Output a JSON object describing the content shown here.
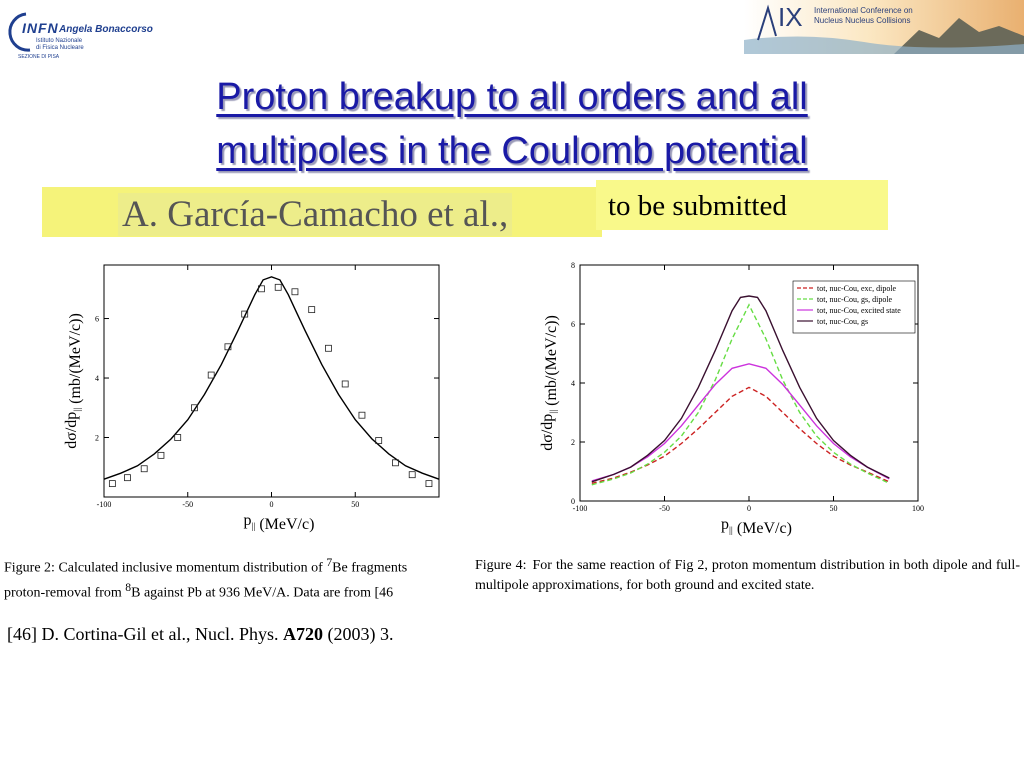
{
  "header": {
    "left_logo": {
      "wordmark": "INFN",
      "author": "Angela Bonaccorso",
      "line1": "Istituto Nazionale",
      "line2": "di Fisica Nucleare",
      "line3": "SEZIONE DI PISA"
    },
    "right_logo": {
      "numeral": "IX",
      "line1": "International Conference on",
      "line2": "Nucleus Nucleus Collisions"
    }
  },
  "title": {
    "line1": "Proton breakup to all orders and all",
    "line2": "multipoles in the Coulomb potential"
  },
  "authors": "A. García-Camacho et al.,",
  "status": "to be submitted",
  "captions": {
    "fig2_line1_a": "Figure 2:  Calculated inclusive momentum distribution of ",
    "fig2_sup1": "7",
    "fig2_line1_b": "Be fragments",
    "fig2_line2_a": "proton-removal from ",
    "fig2_sup2": "8",
    "fig2_line2_b": "B against Pb at 936 MeV/A. Data are from [46",
    "fig4_label": "Figure 4:",
    "fig4_text": "For the same reaction of Fig 2, proton momentum distribution in both dipole and full-multipole approximations, for both ground and excited state."
  },
  "reference": {
    "prefix": "[46]  D. Cortina-Gil et al., Nucl. Phys. ",
    "volume": "A720",
    "suffix": " (2003) 3."
  },
  "colors": {
    "title": "#1a1aa6",
    "highlight": "#f5f37a",
    "series_red": "#cc2222",
    "series_green": "#66dd44",
    "series_magenta": "#cc33dd",
    "series_dark": "#3a1030"
  },
  "chart_data": [
    {
      "type": "line",
      "xlabel": "p|| (MeV/c)",
      "ylabel": "dσ/dp|| (mb/(MeV/c))",
      "xlim": [
        -100,
        100
      ],
      "ylim": [
        0,
        7.8
      ],
      "xticks": [
        -100,
        -50,
        0,
        50
      ],
      "yticks": [
        2,
        4,
        6
      ],
      "series": [
        {
          "kind": "line",
          "x": [
            -100,
            -90,
            -80,
            -70,
            -60,
            -50,
            -40,
            -30,
            -20,
            -15,
            -10,
            -5,
            0,
            5,
            10,
            15,
            20,
            30,
            40,
            50,
            60,
            70,
            80,
            90,
            100
          ],
          "y": [
            0.6,
            0.8,
            1.05,
            1.45,
            1.95,
            2.6,
            3.45,
            4.45,
            5.6,
            6.2,
            6.8,
            7.3,
            7.4,
            7.3,
            6.8,
            6.2,
            5.6,
            4.45,
            3.45,
            2.6,
            1.95,
            1.45,
            1.05,
            0.8,
            0.6
          ]
        },
        {
          "kind": "points",
          "x": [
            -95,
            -86,
            -76,
            -66,
            -56,
            -46,
            -36,
            -26,
            -16,
            -6,
            4,
            14,
            24,
            34,
            44,
            54,
            64,
            74,
            84,
            94
          ],
          "y": [
            0.45,
            0.65,
            0.95,
            1.4,
            2.0,
            3.0,
            4.1,
            5.05,
            6.15,
            7.0,
            7.05,
            6.9,
            6.3,
            5.0,
            3.8,
            2.75,
            1.9,
            1.15,
            0.75,
            0.45
          ]
        }
      ]
    },
    {
      "type": "line",
      "xlabel": "p|| (MeV/c)",
      "ylabel": "dσ/dp|| (mb/(MeV/c))",
      "xlim": [
        -100,
        100
      ],
      "ylim": [
        0,
        8
      ],
      "xticks": [
        -100,
        -50,
        0,
        50,
        100
      ],
      "yticks": [
        0,
        2,
        4,
        6,
        8
      ],
      "legend_position": "top-right",
      "series": [
        {
          "name": "tot, nuc-Cou, exc, dipole",
          "style": "dashed",
          "color": "#cc2222",
          "x": [
            -93,
            -80,
            -70,
            -60,
            -50,
            -40,
            -30,
            -20,
            -10,
            0,
            10,
            20,
            30,
            40,
            50,
            60,
            70,
            83
          ],
          "y": [
            0.6,
            0.78,
            0.98,
            1.22,
            1.52,
            1.95,
            2.45,
            3.0,
            3.55,
            3.85,
            3.55,
            3.0,
            2.45,
            1.95,
            1.52,
            1.22,
            0.98,
            0.65
          ]
        },
        {
          "name": "tot, nuc-Cou, gs, dipole",
          "style": "dashed",
          "color": "#66dd44",
          "x": [
            -93,
            -80,
            -70,
            -60,
            -50,
            -40,
            -30,
            -20,
            -10,
            0,
            10,
            20,
            30,
            40,
            50,
            60,
            70,
            83
          ],
          "y": [
            0.55,
            0.75,
            0.95,
            1.25,
            1.65,
            2.2,
            3.0,
            4.1,
            5.5,
            6.65,
            5.5,
            4.1,
            3.0,
            2.2,
            1.65,
            1.25,
            0.95,
            0.6
          ]
        },
        {
          "name": "tot, nuc-Cou, excited state",
          "style": "solid",
          "color": "#cc33dd",
          "x": [
            -93,
            -80,
            -70,
            -60,
            -50,
            -40,
            -30,
            -20,
            -10,
            0,
            10,
            20,
            30,
            40,
            50,
            60,
            70,
            83
          ],
          "y": [
            0.68,
            0.9,
            1.15,
            1.5,
            1.95,
            2.55,
            3.25,
            3.95,
            4.5,
            4.65,
            4.5,
            3.95,
            3.25,
            2.55,
            1.95,
            1.5,
            1.15,
            0.75
          ]
        },
        {
          "name": "tot, nuc-Cou, gs",
          "style": "solid",
          "color": "#3a1030",
          "x": [
            -93,
            -80,
            -70,
            -60,
            -50,
            -40,
            -30,
            -20,
            -10,
            -5,
            0,
            5,
            10,
            20,
            30,
            40,
            50,
            60,
            70,
            83
          ],
          "y": [
            0.65,
            0.9,
            1.15,
            1.55,
            2.05,
            2.8,
            3.85,
            5.1,
            6.45,
            6.9,
            6.95,
            6.9,
            6.45,
            5.1,
            3.85,
            2.8,
            2.05,
            1.55,
            1.15,
            0.78
          ]
        }
      ]
    }
  ]
}
